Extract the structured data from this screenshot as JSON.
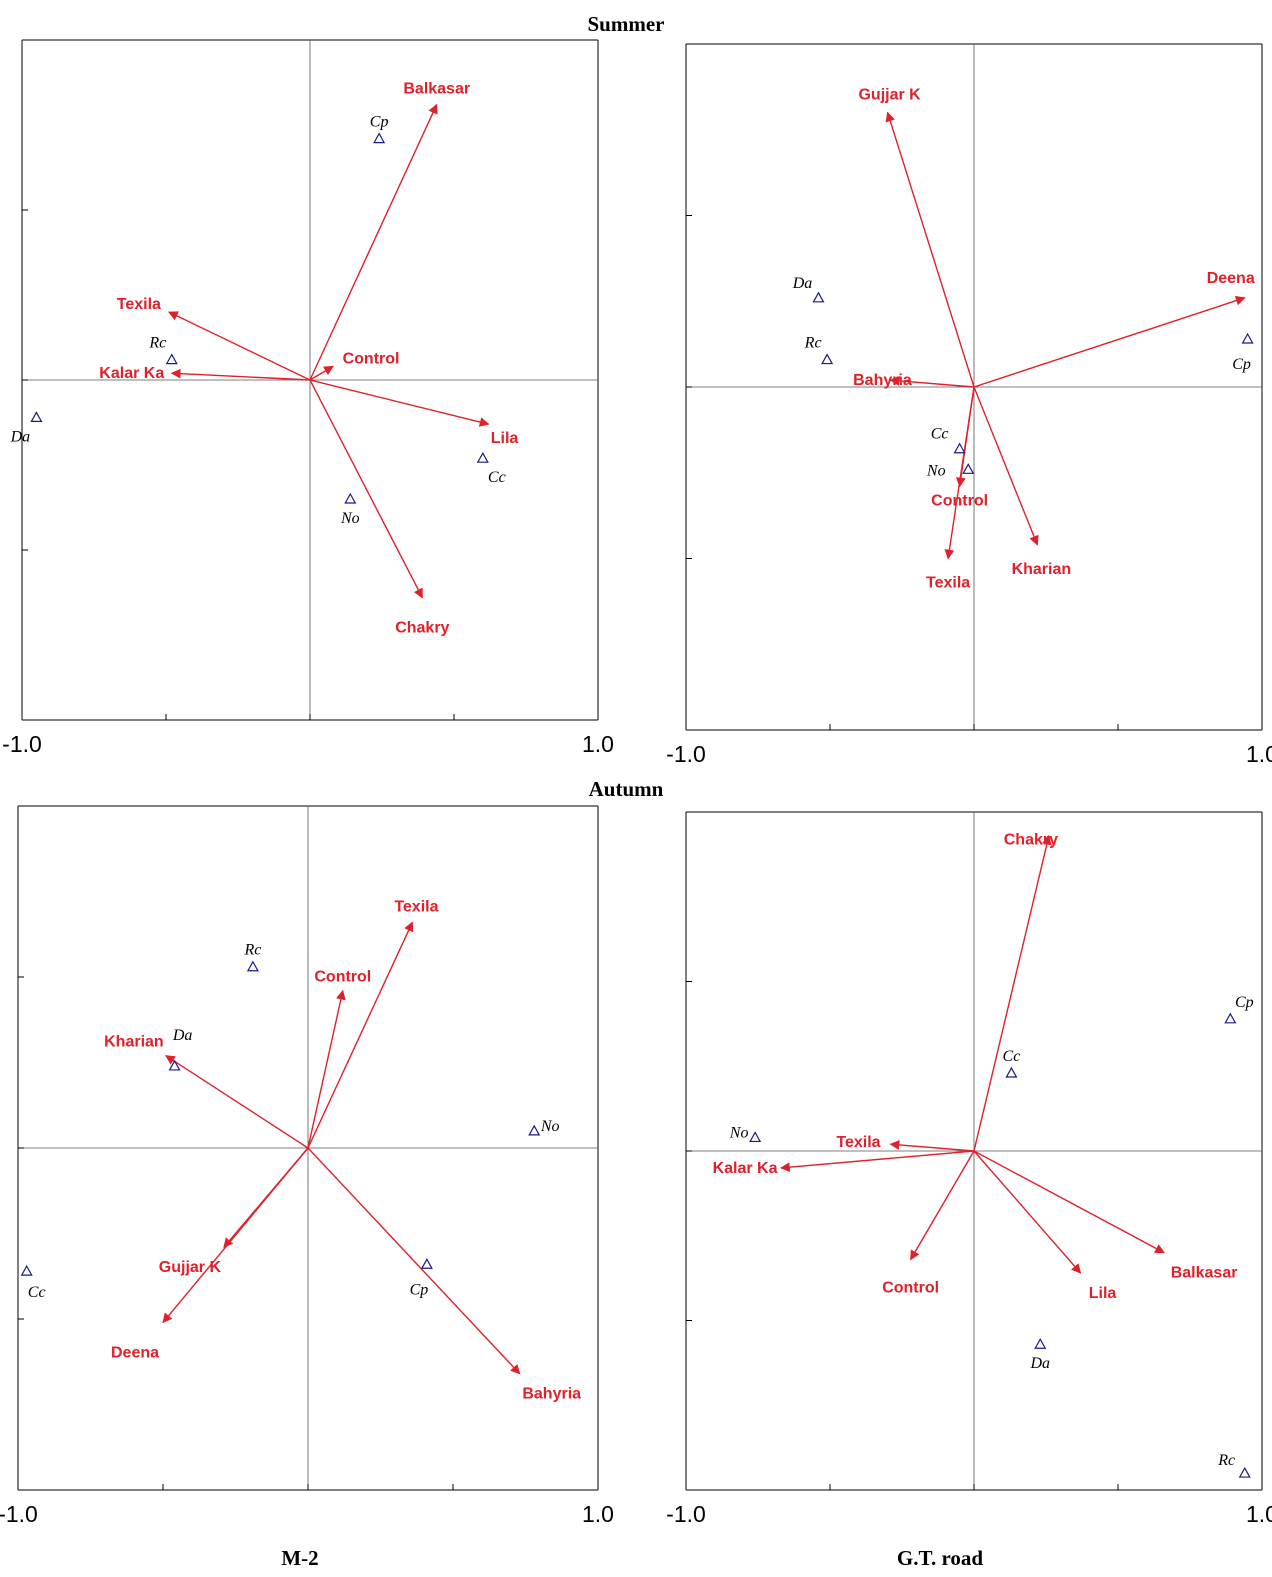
{
  "section_titles": {
    "top": "Summer",
    "middle": "Autumn"
  },
  "column_titles": {
    "left": "M-2",
    "right": "G.T. road"
  },
  "colors": {
    "arrow": "#e0202a",
    "species": "#1a1a8c",
    "frame": "#000000",
    "axis": "#555555"
  },
  "species_marker": "triangle-outline",
  "chart_data": [
    {
      "type": "scatter",
      "id": "summer-m2",
      "title": "",
      "xlabel": "",
      "ylabel": "",
      "xlim": [
        -1.0,
        1.0
      ],
      "ylim": [
        -1.0,
        1.0
      ],
      "xticks": [
        -1.0,
        1.0
      ],
      "tick_labels": [
        "-1.0",
        "1.0"
      ],
      "grid": false,
      "arrows": [
        {
          "name": "Balkasar",
          "x": 0.44,
          "y": 0.81
        },
        {
          "name": "Texila",
          "x": -0.49,
          "y": 0.2
        },
        {
          "name": "Kalar Ka",
          "x": -0.48,
          "y": 0.02
        },
        {
          "name": "Control",
          "x": 0.08,
          "y": 0.04
        },
        {
          "name": "Lila",
          "x": 0.62,
          "y": -0.13
        },
        {
          "name": "Chakry",
          "x": 0.39,
          "y": -0.64
        }
      ],
      "species": [
        {
          "name": "Cp",
          "x": 0.24,
          "y": 0.71
        },
        {
          "name": "Rc",
          "x": -0.48,
          "y": 0.06
        },
        {
          "name": "Da",
          "x": -0.95,
          "y": -0.11
        },
        {
          "name": "No",
          "x": 0.14,
          "y": -0.35
        },
        {
          "name": "Cc",
          "x": 0.6,
          "y": -0.23
        }
      ]
    },
    {
      "type": "scatter",
      "id": "summer-gt-road",
      "title": "",
      "xlabel": "",
      "ylabel": "",
      "xlim": [
        -1.0,
        1.0
      ],
      "ylim": [
        -1.0,
        1.0
      ],
      "xticks": [
        -1.0,
        1.0
      ],
      "tick_labels": [
        "-1.0",
        "1.0"
      ],
      "grid": false,
      "arrows": [
        {
          "name": "Gujjar K",
          "x": -0.3,
          "y": 0.8
        },
        {
          "name": "Deena",
          "x": 0.94,
          "y": 0.26
        },
        {
          "name": "Bahyria",
          "x": -0.29,
          "y": 0.02
        },
        {
          "name": "Control",
          "x": -0.05,
          "y": -0.29
        },
        {
          "name": "Texila",
          "x": -0.09,
          "y": -0.5
        },
        {
          "name": "Kharian",
          "x": 0.22,
          "y": -0.46
        }
      ],
      "species": [
        {
          "name": "Da",
          "x": -0.54,
          "y": 0.26
        },
        {
          "name": "Rc",
          "x": -0.51,
          "y": 0.08
        },
        {
          "name": "Cp",
          "x": 0.95,
          "y": 0.14
        },
        {
          "name": "Cc",
          "x": -0.05,
          "y": -0.18
        },
        {
          "name": "No",
          "x": -0.02,
          "y": -0.24
        }
      ]
    },
    {
      "type": "scatter",
      "id": "autumn-m2",
      "title": "",
      "xlabel": "",
      "ylabel": "",
      "xlim": [
        -1.0,
        1.0
      ],
      "ylim": [
        -1.0,
        1.0
      ],
      "xticks": [
        -1.0,
        1.0
      ],
      "tick_labels": [
        "-1.0",
        "1.0"
      ],
      "grid": false,
      "arrows": [
        {
          "name": "Texila",
          "x": 0.36,
          "y": 0.66
        },
        {
          "name": "Control",
          "x": 0.12,
          "y": 0.46
        },
        {
          "name": "Kharian",
          "x": -0.49,
          "y": 0.27
        },
        {
          "name": "Gujjar K",
          "x": -0.29,
          "y": -0.29
        },
        {
          "name": "Deena",
          "x": -0.5,
          "y": -0.51
        },
        {
          "name": "Bahyria",
          "x": 0.73,
          "y": -0.66
        }
      ],
      "species": [
        {
          "name": "Rc",
          "x": -0.19,
          "y": 0.53
        },
        {
          "name": "Da",
          "x": -0.46,
          "y": 0.24
        },
        {
          "name": "No",
          "x": 0.78,
          "y": 0.05
        },
        {
          "name": "Cc",
          "x": -0.97,
          "y": -0.36
        },
        {
          "name": "Cp",
          "x": 0.41,
          "y": -0.34
        }
      ]
    },
    {
      "type": "scatter",
      "id": "autumn-gt-road",
      "title": "",
      "xlabel": "",
      "ylabel": "",
      "xlim": [
        -1.0,
        1.0
      ],
      "ylim": [
        -1.0,
        1.0
      ],
      "xticks": [
        -1.0,
        1.0
      ],
      "tick_labels": [
        "-1.0",
        "1.0"
      ],
      "grid": false,
      "arrows": [
        {
          "name": "Chakry",
          "x": 0.26,
          "y": 0.93
        },
        {
          "name": "Texila",
          "x": -0.29,
          "y": 0.02
        },
        {
          "name": "Kalar Ka",
          "x": -0.67,
          "y": -0.05
        },
        {
          "name": "Control",
          "x": -0.22,
          "y": -0.32
        },
        {
          "name": "Lila",
          "x": 0.37,
          "y": -0.36
        },
        {
          "name": "Balkasar",
          "x": 0.66,
          "y": -0.3
        }
      ],
      "species": [
        {
          "name": "Cp",
          "x": 0.89,
          "y": 0.39
        },
        {
          "name": "Cc",
          "x": 0.13,
          "y": 0.23
        },
        {
          "name": "No",
          "x": -0.76,
          "y": 0.04
        },
        {
          "name": "Da",
          "x": 0.23,
          "y": -0.57
        },
        {
          "name": "Rc",
          "x": 0.94,
          "y": -0.95
        }
      ]
    }
  ]
}
